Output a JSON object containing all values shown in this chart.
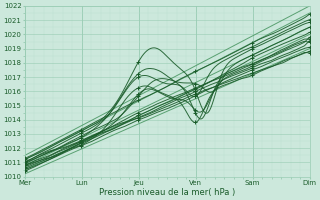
{
  "xlabel": "Pression niveau de la mer( hPa )",
  "bg_color": "#cce8dc",
  "grid_major_color": "#99ccb3",
  "grid_minor_color": "#b8ddd0",
  "line_dark": "#1a5c2a",
  "line_light": "#4d9966",
  "ylim": [
    1010,
    1022
  ],
  "xlim": [
    0,
    5
  ],
  "yticks": [
    1010,
    1011,
    1012,
    1013,
    1014,
    1015,
    1016,
    1017,
    1018,
    1019,
    1020,
    1021,
    1022
  ],
  "day_labels": [
    "Mer",
    "Lun",
    "Jeu",
    "Ven",
    "Sam",
    "Dim"
  ],
  "day_positions": [
    0,
    1,
    2,
    3,
    4,
    5
  ],
  "xlabel_fontsize": 6.0,
  "tick_fontsize": 5.0,
  "figsize": [
    3.2,
    2.0
  ],
  "dpi": 100,
  "straight_lines": [
    [
      1010.2,
      1019.0
    ],
    [
      1010.5,
      1020.0
    ],
    [
      1010.8,
      1020.5
    ],
    [
      1011.2,
      1021.5
    ],
    [
      1011.5,
      1022.0
    ]
  ]
}
